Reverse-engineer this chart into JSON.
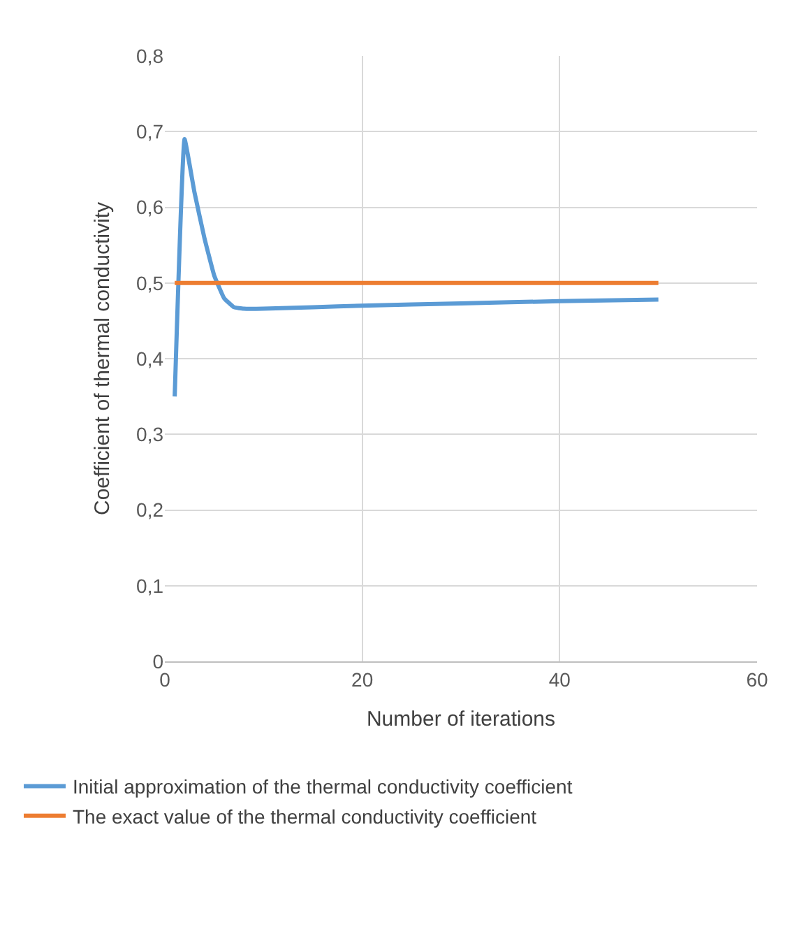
{
  "chart_data": {
    "type": "line",
    "xlabel": "Number of iterations",
    "ylabel": "Coefficient of thermal conductivity",
    "series": [
      {
        "name": "Initial approximation of the thermal conductivity coefficient",
        "color": "#5b9bd5",
        "x": [
          1,
          2,
          3,
          4,
          5,
          6,
          7,
          8,
          10,
          15,
          20,
          30,
          40,
          50
        ],
        "values": [
          0.35,
          0.69,
          0.62,
          0.56,
          0.51,
          0.48,
          0.468,
          0.466,
          0.466,
          0.468,
          0.47,
          0.473,
          0.476,
          0.478
        ]
      },
      {
        "name": "The exact value of the thermal conductivity coefficient",
        "color": "#ed7d31",
        "x": [
          1,
          50
        ],
        "values": [
          0.5,
          0.5
        ]
      }
    ],
    "xlim": [
      0,
      60
    ],
    "xticks": [
      0,
      20,
      40,
      60
    ],
    "ylim": [
      0,
      0.8
    ],
    "yticks": [
      0,
      {
        "value": 0.1,
        "label": "0,1"
      },
      {
        "value": 0.2,
        "label": "0,2"
      },
      {
        "value": 0.3,
        "label": "0,3"
      },
      {
        "value": 0.4,
        "label": "0,4"
      },
      {
        "value": 0.5,
        "label": "0,5"
      },
      {
        "value": 0.6,
        "label": "0,6"
      },
      {
        "value": 0.7,
        "label": "0,7"
      },
      {
        "value": 0.8,
        "label": "0,8"
      }
    ],
    "grid": true,
    "legend": "bottom",
    "marker": "none",
    "line_style": "solid"
  }
}
